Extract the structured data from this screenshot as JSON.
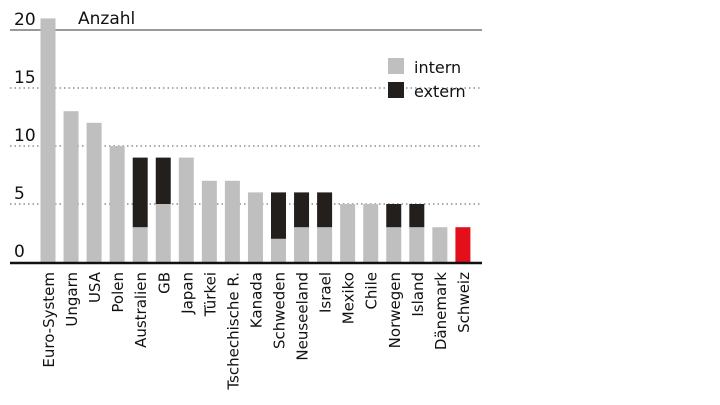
{
  "chart_data": {
    "type": "bar",
    "stacked": true,
    "ylabel": "Anzahl",
    "ylim": [
      0,
      20
    ],
    "yticks": [
      0,
      5,
      10,
      15,
      20
    ],
    "grid": "dotted-horizontal",
    "legend_position": "top-right",
    "categories": [
      "Euro-System",
      "Ungarn",
      "USA",
      "Polen",
      "Australien",
      "GB",
      "Japan",
      "Türkei",
      "Tschechische R.",
      "Kanada",
      "Schweden",
      "Neuseeland",
      "Israel",
      "Mexiko",
      "Chile",
      "Norwegen",
      "Island",
      "Dänemark",
      "Schweiz"
    ],
    "series": [
      {
        "name": "intern",
        "color": "#bfbfbf",
        "values": [
          21,
          13,
          12,
          10,
          3,
          5,
          9,
          7,
          7,
          6,
          2,
          3,
          3,
          5,
          5,
          3,
          3,
          3,
          0
        ]
      },
      {
        "name": "extern",
        "color": "#231f1c",
        "values": [
          0,
          0,
          0,
          0,
          6,
          4,
          0,
          0,
          0,
          0,
          4,
          3,
          3,
          0,
          0,
          2,
          2,
          0,
          0
        ]
      }
    ],
    "highlight": {
      "category": "Schweiz",
      "value": 3,
      "color": "#e3101b"
    }
  }
}
